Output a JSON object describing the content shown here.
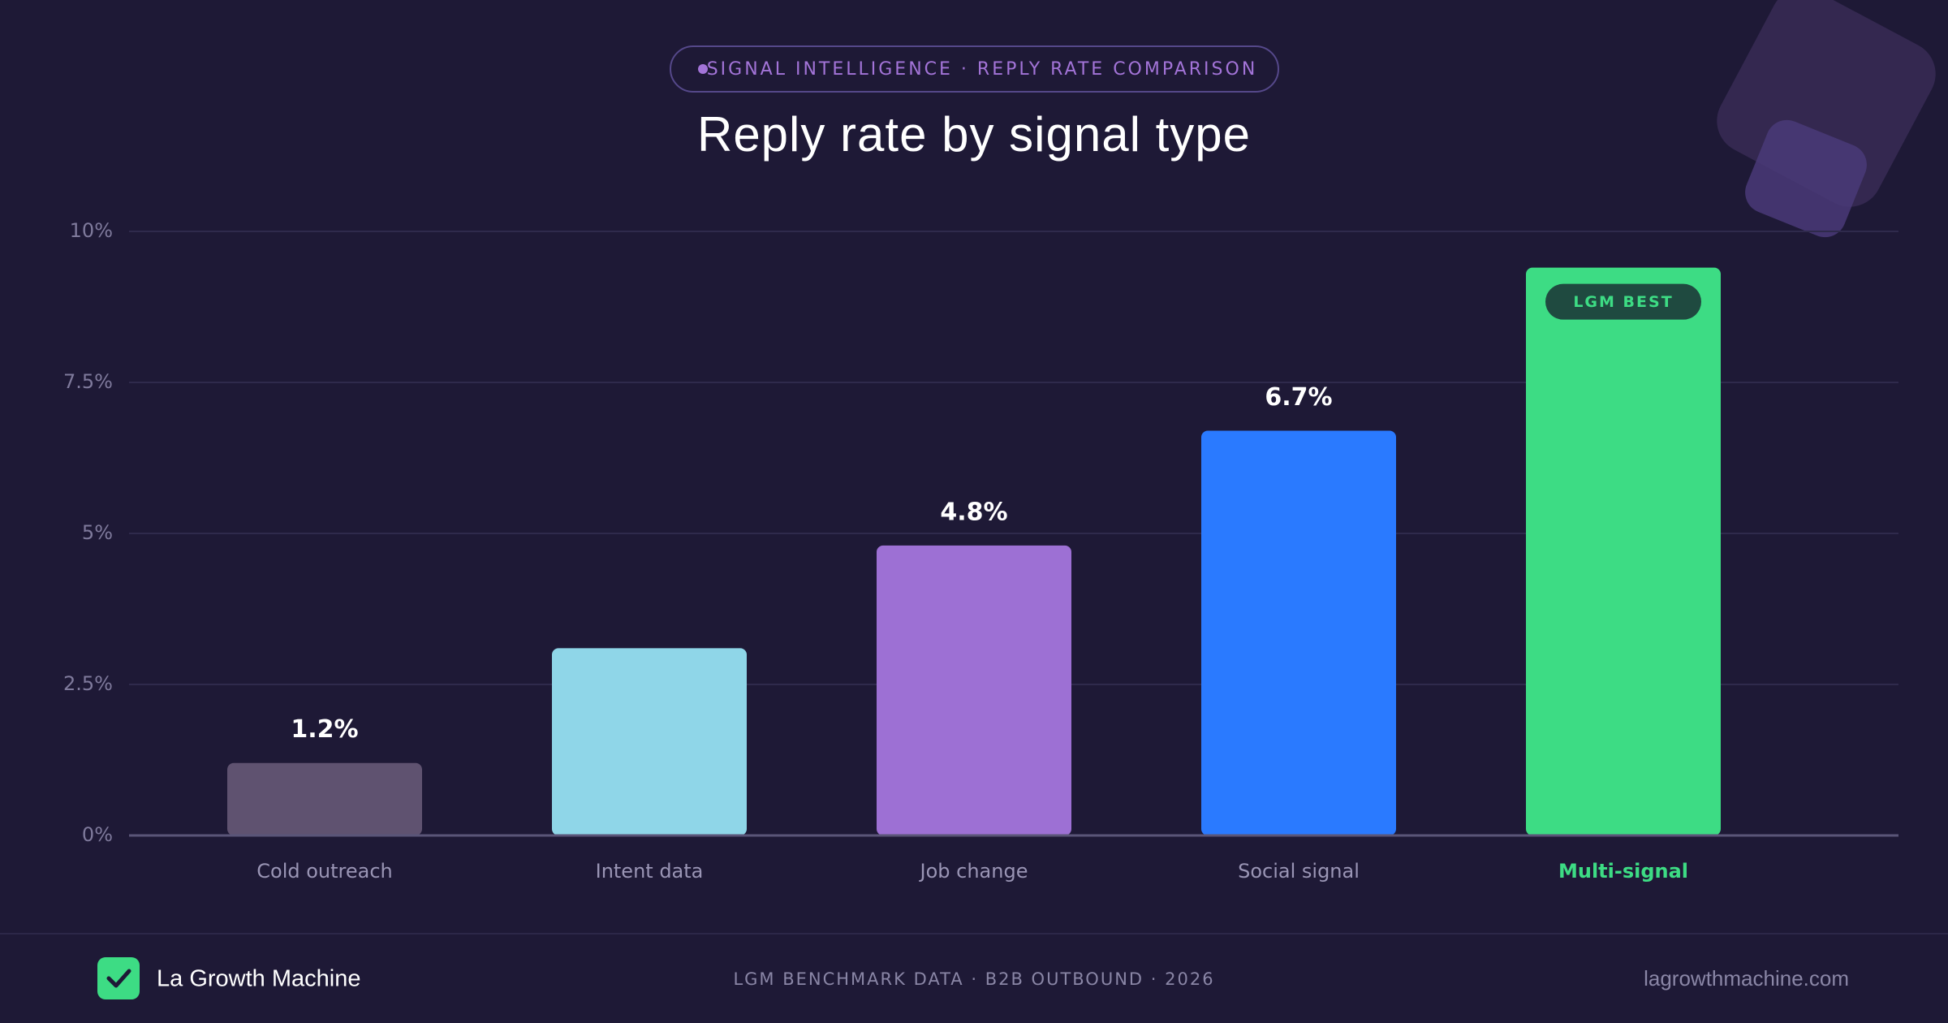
{
  "header": {
    "tag": "SIGNAL INTELLIGENCE · REPLY RATE COMPARISON"
  },
  "chart_data": {
    "type": "bar",
    "title": "Reply rate by signal type",
    "categories": [
      "Cold outreach",
      "Intent data",
      "Job change",
      "Social signal",
      "Multi-signal"
    ],
    "values": [
      1.2,
      3.1,
      4.8,
      6.7,
      9.4
    ],
    "value_labels": [
      "1.2%",
      null,
      "4.8%",
      "6.7%",
      null
    ],
    "colors": [
      "#5f5270",
      "#8fd6e8",
      "#9d70d4",
      "#2a7aff",
      "#3ddc84"
    ],
    "ylim": [
      0,
      10
    ],
    "yticks": [
      {
        "value": 0,
        "label": "0%"
      },
      {
        "value": 2.5,
        "label": "2.5%"
      },
      {
        "value": 5,
        "label": "5%"
      },
      {
        "value": 7.5,
        "label": "7.5%"
      },
      {
        "value": 10,
        "label": "10%"
      }
    ],
    "grid": true,
    "badge": "LGM BEST"
  },
  "footer": {
    "brand": "La Growth Machine",
    "source": "LGM BENCHMARK DATA · B2B OUTBOUND · 2026",
    "url": "lagrowthmachine.com"
  }
}
